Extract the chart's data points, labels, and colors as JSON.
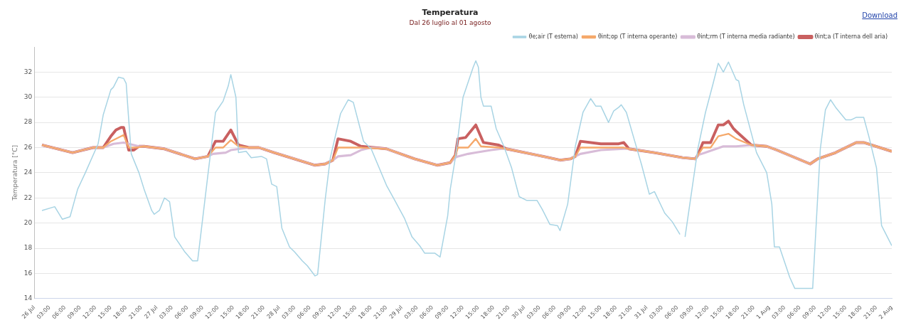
{
  "chart_data": {
    "type": "line",
    "title": "Temperatura",
    "subtitle": "Dal 26 luglio al 01 agosto",
    "ylabel": "Temperatura [°C]",
    "annotations": [
      "Download"
    ],
    "xlim": [
      "--07-26T00:00",
      "--08-02T00:00"
    ],
    "ylim": [
      14,
      34
    ],
    "yticks": [
      14,
      16,
      18,
      20,
      22,
      24,
      26,
      28,
      30,
      32
    ],
    "xticks": [
      {
        "value": "--07-26T00:00",
        "label": "26 Jul"
      },
      {
        "value": "--07-26T03:00",
        "label": "03:00"
      },
      {
        "value": "--07-26T06:00",
        "label": "06:00"
      },
      {
        "value": "--07-26T09:00",
        "label": "09:00"
      },
      {
        "value": "--07-26T12:00",
        "label": "12:00"
      },
      {
        "value": "--07-26T15:00",
        "label": "15:00"
      },
      {
        "value": "--07-26T18:00",
        "label": "18:00"
      },
      {
        "value": "--07-26T21:00",
        "label": "21:00"
      },
      {
        "value": "--07-27T00:00",
        "label": "27 Jul"
      },
      {
        "value": "--07-27T03:00",
        "label": "03:00"
      },
      {
        "value": "--07-27T06:00",
        "label": "06:00"
      },
      {
        "value": "--07-27T09:00",
        "label": "09:00"
      },
      {
        "value": "--07-27T12:00",
        "label": "12:00"
      },
      {
        "value": "--07-27T15:00",
        "label": "15:00"
      },
      {
        "value": "--07-27T18:00",
        "label": "18:00"
      },
      {
        "value": "--07-27T21:00",
        "label": "21:00"
      },
      {
        "value": "--07-28T00:00",
        "label": "28 Jul"
      },
      {
        "value": "--07-28T03:00",
        "label": "03:00"
      },
      {
        "value": "--07-28T06:00",
        "label": "06:00"
      },
      {
        "value": "--07-28T09:00",
        "label": "09:00"
      },
      {
        "value": "--07-28T12:00",
        "label": "12:00"
      },
      {
        "value": "--07-28T15:00",
        "label": "15:00"
      },
      {
        "value": "--07-28T18:00",
        "label": "18:00"
      },
      {
        "value": "--07-28T21:00",
        "label": "21:00"
      },
      {
        "value": "--07-29T00:00",
        "label": "29 Jul"
      },
      {
        "value": "--07-29T03:00",
        "label": "03:00"
      },
      {
        "value": "--07-29T06:00",
        "label": "06:00"
      },
      {
        "value": "--07-29T09:00",
        "label": "09:00"
      },
      {
        "value": "--07-29T12:00",
        "label": "12:00"
      },
      {
        "value": "--07-29T15:00",
        "label": "15:00"
      },
      {
        "value": "--07-29T18:00",
        "label": "18:00"
      },
      {
        "value": "--07-29T21:00",
        "label": "21:00"
      },
      {
        "value": "--07-30T00:00",
        "label": "30 Jul"
      },
      {
        "value": "--07-30T03:00",
        "label": "03:00"
      },
      {
        "value": "--07-30T06:00",
        "label": "06:00"
      },
      {
        "value": "--07-30T09:00",
        "label": "09:00"
      },
      {
        "value": "--07-30T12:00",
        "label": "12:00"
      },
      {
        "value": "--07-30T15:00",
        "label": "15:00"
      },
      {
        "value": "--07-30T18:00",
        "label": "18:00"
      },
      {
        "value": "--07-30T21:00",
        "label": "21:00"
      },
      {
        "value": "--07-31T00:00",
        "label": "31 Jul"
      },
      {
        "value": "--07-31T03:00",
        "label": "03:00"
      },
      {
        "value": "--07-31T06:00",
        "label": "06:00"
      },
      {
        "value": "--07-31T09:00",
        "label": "09:00"
      },
      {
        "value": "--07-31T12:00",
        "label": "12:00"
      },
      {
        "value": "--07-31T15:00",
        "label": "15:00"
      },
      {
        "value": "--07-31T18:00",
        "label": "18:00"
      },
      {
        "value": "--07-31T21:00",
        "label": "21:00"
      },
      {
        "value": "--08-01T00:00",
        "label": "1 Aug"
      },
      {
        "value": "--08-01T03:00",
        "label": "03:00"
      },
      {
        "value": "--08-01T06:00",
        "label": "06:00"
      },
      {
        "value": "--08-01T09:00",
        "label": "09:00"
      },
      {
        "value": "--08-01T12:00",
        "label": "12:00"
      },
      {
        "value": "--08-01T15:00",
        "label": "15:00"
      },
      {
        "value": "--08-01T18:00",
        "label": "18:00"
      },
      {
        "value": "--08-01T21:00",
        "label": "21:00"
      },
      {
        "value": "--08-02T00:00",
        "label": "2 Aug"
      }
    ],
    "grid": "y",
    "legend": "top right",
    "line_style": "solid",
    "series": [
      {
        "name": "θe;air (T esterna)",
        "color": "#a8d4e4",
        "x": [
          "--07-26T01:30",
          "--07-26T04:00",
          "--07-26T05:30",
          "--07-26T07:00",
          "--07-26T08:30",
          "--07-26T10:00",
          "--07-26T12:30",
          "--07-26T13:30",
          "--07-26T15:00",
          "--07-26T15:30",
          "--07-26T16:30",
          "--07-26T17:30",
          "--07-26T18:00",
          "--07-26T18:30",
          "--07-26T19:00",
          "--07-26T20:30",
          "--07-26T21:30",
          "--07-26T23:00",
          "--07-26T23:30",
          "--07-27T00:30",
          "--07-27T01:30",
          "--07-27T02:30",
          "--07-27T03:30",
          "--07-27T05:30",
          "--07-27T07:00",
          "--07-27T08:00",
          "--07-27T10:00",
          "--07-27T11:30",
          "--07-27T13:00",
          "--07-27T14:00",
          "--07-27T14:30",
          "--07-27T15:30",
          "--07-27T16:00",
          "--07-27T17:30",
          "--07-27T18:30",
          "--07-27T20:30",
          "--07-27T21:30",
          "--07-27T22:30",
          "--07-27T23:30",
          "--07-28T00:30",
          "--07-28T02:00",
          "--07-28T03:00",
          "--07-28T04:30",
          "--07-28T05:30",
          "--07-28T07:00",
          "--07-28T07:30",
          "--07-28T09:00",
          "--07-28T10:00",
          "--07-28T12:00",
          "--07-28T13:30",
          "--07-28T14:30",
          "--07-28T16:30",
          "--07-28T18:00",
          "--07-28T21:00",
          "--07-28T22:30",
          "--07-29T00:30",
          "--07-29T02:00",
          "--07-29T03:30",
          "--07-29T04:30",
          "--07-29T06:30",
          "--07-29T07:30",
          "--07-29T09:00",
          "--07-29T09:30",
          "--07-29T10:30",
          "--07-29T12:00",
          "--07-29T13:00",
          "--07-29T14:00",
          "--07-29T14:30",
          "--07-29T15:00",
          "--07-29T15:30",
          "--07-29T16:00",
          "--07-29T17:30",
          "--07-29T18:30",
          "--07-29T20:00",
          "--07-29T21:30",
          "--07-29T23:00",
          "--07-30T00:30",
          "--07-30T02:30",
          "--07-30T03:30",
          "--07-30T05:00",
          "--07-30T06:30",
          "--07-30T07:00",
          "--07-30T08:30",
          "--07-30T10:00",
          "--07-30T11:30",
          "--07-30T13:00",
          "--07-30T14:00",
          "--07-30T15:00",
          "--07-30T16:30",
          "--07-30T17:30",
          "--07-30T18:30",
          "--07-30T19:00",
          "--07-30T20:00",
          "--07-30T21:30",
          "--07-30T23:00",
          "--07-31T00:30",
          "--07-31T01:30",
          "--07-31T03:30",
          "--07-31T05:00",
          "--07-31T06:30",
          "--07-31T07:00",
          "--07-31T07:30",
          "--07-31T10:00",
          "--07-31T11:30",
          "--07-31T13:00",
          "--07-31T14:00",
          "--07-31T15:00",
          "--07-31T16:00",
          "--07-31T17:30",
          "--07-31T18:00",
          "--07-31T19:00",
          "--07-31T21:30",
          "--07-31T23:30",
          "--08-01T00:30",
          "--08-01T01:00",
          "--08-01T02:00",
          "--08-01T04:00",
          "--08-01T05:00",
          "--08-01T08:30",
          "--08-01T09:00",
          "--08-01T10:00",
          "--08-01T11:00",
          "--08-01T12:00",
          "--08-01T13:00",
          "--08-01T15:00",
          "--08-01T16:00",
          "--08-01T17:00",
          "--08-01T18:30",
          "--08-01T19:30",
          "--08-01T21:00",
          "--08-01T22:00",
          "--08-02T00:00"
        ],
        "values": [
          21.0,
          21.3,
          20.3,
          20.5,
          22.7,
          24.0,
          26.3,
          28.6,
          30.6,
          30.8,
          31.6,
          31.5,
          31.1,
          28.2,
          25.5,
          24.0,
          22.7,
          21.0,
          20.7,
          21.0,
          22.0,
          21.7,
          18.9,
          17.7,
          17.0,
          17.0,
          23.8,
          28.8,
          29.7,
          30.9,
          31.8,
          30.0,
          25.6,
          25.7,
          25.2,
          25.3,
          25.1,
          23.1,
          22.9,
          19.6,
          18.1,
          17.7,
          17.0,
          16.6,
          15.8,
          15.9,
          21.9,
          25.2,
          28.7,
          29.8,
          29.6,
          26.5,
          25.9,
          23.0,
          21.9,
          20.4,
          18.9,
          18.2,
          17.6,
          17.6,
          17.3,
          20.6,
          22.7,
          25.2,
          30.0,
          31.2,
          32.4,
          32.9,
          32.4,
          30.0,
          29.3,
          29.3,
          27.5,
          26.1,
          24.4,
          22.1,
          21.8,
          21.8,
          21.1,
          19.9,
          19.8,
          19.4,
          21.5,
          26.1,
          28.8,
          29.9,
          29.3,
          29.3,
          28.0,
          28.9,
          29.2,
          29.4,
          28.8,
          26.7,
          24.6,
          22.3,
          22.5,
          20.8,
          20.1,
          19.1,
          null,
          18.9,
          25.9,
          28.8,
          31.1,
          32.7,
          32.0,
          32.8,
          31.4,
          31.3,
          29.4,
          25.6,
          24.0,
          21.5,
          18.1,
          18.1,
          15.7,
          14.8,
          14.8,
          18.5,
          25.9,
          29.0,
          29.8,
          29.2,
          28.2,
          28.2,
          28.4,
          28.4,
          26.9,
          24.4,
          19.8,
          18.2
        ]
      },
      {
        "name": "θint;op (T interna operante)",
        "color": "#f5a86a",
        "x": [
          "--07-26T01:30",
          "--07-26T07:30",
          "--07-26T11:30",
          "--07-26T13:30",
          "--07-26T15:00",
          "--07-26T17:30",
          "--07-26T18:30",
          "--07-26T20:00",
          "--07-26T21:30",
          "--07-27T01:30",
          "--07-27T07:30",
          "--07-27T10:00",
          "--07-27T11:30",
          "--07-27T13:00",
          "--07-27T14:30",
          "--07-27T16:00",
          "--07-27T18:00",
          "--07-27T20:00",
          "--07-27T23:00",
          "--07-28T07:00",
          "--07-28T09:00",
          "--07-28T10:30",
          "--07-28T11:30",
          "--07-28T16:00",
          "--07-28T21:00",
          "--07-29T02:30",
          "--07-29T07:00",
          "--07-29T09:30",
          "--07-29T10:30",
          "--07-29T11:00",
          "--07-29T13:00",
          "--07-29T14:30",
          "--07-29T15:30",
          "--07-29T19:00",
          "--07-29T20:30",
          "--07-30T02:30",
          "--07-30T07:00",
          "--07-30T09:00",
          "--07-30T10:00",
          "--07-30T11:00",
          "--07-30T19:30",
          "--07-30T20:30",
          "--07-31T01:30",
          "--07-31T07:00",
          "--07-31T09:30",
          "--07-31T10:00",
          "--07-31T11:00",
          "--07-31T12:30",
          "--07-31T14:00",
          "--07-31T16:00",
          "--07-31T17:30",
          "--07-31T20:30",
          "--07-31T23:30",
          "--08-01T01:30",
          "--08-01T08:00",
          "--08-01T09:30",
          "--08-01T13:00",
          "--08-01T17:00",
          "--08-01T18:30",
          "--08-02T00:00"
        ],
        "values": [
          26.2,
          25.6,
          26.0,
          26.0,
          26.5,
          27.0,
          26.0,
          26.0,
          26.1,
          25.9,
          25.1,
          25.3,
          26.0,
          26.0,
          26.6,
          26.1,
          26.0,
          26.0,
          25.6,
          24.6,
          24.7,
          25.0,
          26.0,
          26.0,
          25.9,
          25.1,
          24.6,
          24.8,
          25.4,
          26.0,
          26.0,
          26.7,
          26.1,
          26.0,
          25.9,
          25.4,
          25.0,
          25.1,
          25.3,
          26.0,
          26.0,
          25.9,
          25.6,
          25.2,
          25.1,
          25.4,
          26.0,
          26.0,
          26.9,
          27.1,
          26.7,
          26.2,
          26.1,
          25.8,
          24.7,
          25.1,
          25.6,
          26.4,
          26.4,
          25.7
        ]
      },
      {
        "name": "θint;rm (T interna media radiante)",
        "color": "#d8bcd8",
        "x": [
          "--07-26T01:30",
          "--07-26T07:30",
          "--07-26T11:30",
          "--07-26T13:30",
          "--07-26T15:30",
          "--07-26T17:30",
          "--07-26T18:30",
          "--07-26T20:30",
          "--07-26T21:30",
          "--07-27T01:30",
          "--07-27T07:30",
          "--07-27T10:00",
          "--07-27T11:00",
          "--07-27T13:30",
          "--07-27T14:30",
          "--07-27T18:00",
          "--07-27T20:00",
          "--07-27T23:00",
          "--07-28T07:00",
          "--07-28T09:00",
          "--07-28T10:30",
          "--07-28T11:30",
          "--07-28T14:00",
          "--07-28T16:00",
          "--07-28T18:00",
          "--07-28T21:00",
          "--07-29T02:30",
          "--07-29T07:00",
          "--07-29T09:30",
          "--07-29T10:30",
          "--07-29T11:00",
          "--07-29T13:00",
          "--07-29T14:30",
          "--07-29T17:30",
          "--07-29T19:30",
          "--07-29T20:30",
          "--07-30T02:30",
          "--07-30T07:00",
          "--07-30T09:00",
          "--07-30T10:00",
          "--07-30T11:00",
          "--07-30T15:00",
          "--07-30T19:30",
          "--07-30T20:30",
          "--07-31T01:30",
          "--07-31T07:00",
          "--07-31T09:30",
          "--07-31T10:00",
          "--07-31T11:30",
          "--07-31T15:00",
          "--07-31T17:30",
          "--07-31T20:30",
          "--07-31T23:30",
          "--08-01T01:30",
          "--08-01T08:00",
          "--08-01T09:30",
          "--08-01T13:00",
          "--08-01T17:00",
          "--08-01T18:30",
          "--08-02T00:00"
        ],
        "values": [
          26.2,
          25.6,
          26.0,
          26.0,
          26.3,
          26.4,
          26.3,
          26.1,
          26.1,
          25.9,
          25.1,
          25.3,
          25.5,
          25.6,
          25.8,
          26.0,
          26.0,
          25.6,
          24.6,
          24.7,
          25.0,
          25.3,
          25.4,
          25.8,
          26.0,
          25.9,
          25.1,
          24.6,
          24.8,
          25.2,
          25.3,
          25.5,
          25.6,
          25.8,
          25.9,
          25.9,
          25.4,
          25.0,
          25.1,
          25.3,
          25.5,
          25.8,
          25.9,
          25.9,
          25.6,
          25.2,
          25.1,
          25.4,
          25.6,
          26.1,
          26.1,
          26.2,
          26.1,
          25.8,
          24.7,
          25.1,
          25.6,
          26.4,
          26.4,
          25.7
        ]
      },
      {
        "name": "θint;a (T interna dell aria)",
        "color": "#c96060",
        "x": [
          "--07-26T01:30",
          "--07-26T07:30",
          "--07-26T11:30",
          "--07-26T13:30",
          "--07-26T15:00",
          "--07-26T16:00",
          "--07-26T17:00",
          "--07-26T17:30",
          "--07-26T18:30",
          "--07-26T19:30",
          "--07-26T20:30",
          "--07-26T21:30",
          "--07-27T01:30",
          "--07-27T07:30",
          "--07-27T10:00",
          "--07-27T11:30",
          "--07-27T13:00",
          "--07-27T14:30",
          "--07-27T16:00",
          "--07-27T18:00",
          "--07-27T20:00",
          "--07-27T23:00",
          "--07-28T07:00",
          "--07-28T09:00",
          "--07-28T10:30",
          "--07-28T11:30",
          "--07-28T14:00",
          "--07-28T16:00",
          "--07-28T21:00",
          "--07-29T02:30",
          "--07-29T07:00",
          "--07-29T09:30",
          "--07-29T10:30",
          "--07-29T11:00",
          "--07-29T12:30",
          "--07-29T14:30",
          "--07-29T16:00",
          "--07-29T19:00",
          "--07-29T20:30",
          "--07-30T02:30",
          "--07-30T07:00",
          "--07-30T09:00",
          "--07-30T10:00",
          "--07-30T11:00",
          "--07-30T15:00",
          "--07-30T18:30",
          "--07-30T19:30",
          "--07-30T20:30",
          "--07-31T01:30",
          "--07-31T07:00",
          "--07-31T09:30",
          "--07-31T10:00",
          "--07-31T11:00",
          "--07-31T12:30",
          "--07-31T14:00",
          "--07-31T15:00",
          "--07-31T16:00",
          "--07-31T17:00",
          "--07-31T17:30",
          "--07-31T20:30",
          "--07-31T23:30",
          "--08-01T01:30",
          "--08-01T08:00",
          "--08-01T09:30",
          "--08-01T13:00",
          "--08-01T17:00",
          "--08-01T18:30",
          "--08-02T00:00"
        ],
        "values": [
          26.2,
          25.6,
          26.0,
          26.0,
          26.9,
          27.4,
          27.6,
          27.6,
          25.8,
          25.8,
          26.1,
          26.1,
          25.9,
          25.1,
          25.3,
          26.5,
          26.5,
          27.4,
          26.2,
          26.0,
          26.0,
          25.6,
          24.6,
          24.7,
          25.0,
          26.7,
          26.5,
          26.1,
          25.9,
          25.1,
          24.6,
          24.8,
          25.4,
          26.7,
          26.8,
          27.8,
          26.4,
          26.2,
          25.9,
          25.4,
          25.0,
          25.1,
          25.3,
          26.5,
          26.3,
          26.3,
          26.4,
          25.9,
          25.6,
          25.2,
          25.1,
          25.4,
          26.4,
          26.4,
          27.8,
          27.8,
          28.1,
          27.5,
          27.3,
          26.2,
          26.1,
          25.8,
          24.7,
          25.1,
          25.6,
          26.4,
          26.4,
          25.7
        ]
      }
    ]
  }
}
